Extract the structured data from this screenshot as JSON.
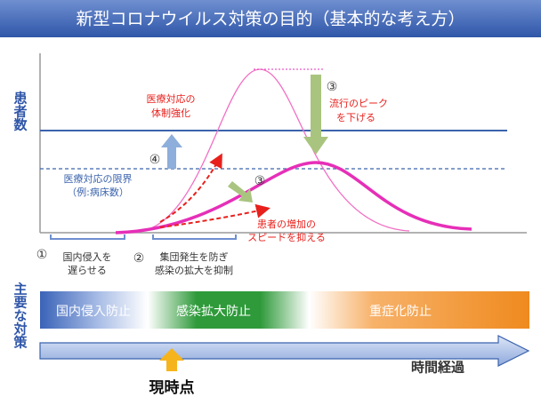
{
  "header": {
    "title": "新型コロナウイルス対策の目的（基本的な考え方）"
  },
  "graph": {
    "y_axis_label": "患者数",
    "medical_strengthening": {
      "number": "④",
      "lines": [
        "医療対応の",
        "体制強化"
      ]
    },
    "lower_peak": {
      "number": "③",
      "lines": [
        "流行のピーク",
        "を下げる"
      ]
    },
    "medical_limit": {
      "lines": [
        "医療対応の限界",
        "（例:病床数）"
      ]
    },
    "slow_increase": {
      "number": "③",
      "lines": [
        "患者の増加の",
        "スピードを抑える"
      ]
    },
    "steps": [
      {
        "number": "①",
        "lines": [
          "国内侵入を",
          "遅らせる"
        ]
      },
      {
        "number": "②",
        "lines": [
          "集団発生を防ぎ",
          "感染の拡大を抑制"
        ]
      }
    ]
  },
  "measures": {
    "label": "主要な対策",
    "phases": [
      "国内侵入防止",
      "感染拡大防止",
      "重症化防止"
    ]
  },
  "timeline": {
    "label": "時間経過",
    "now": "現時点"
  }
}
